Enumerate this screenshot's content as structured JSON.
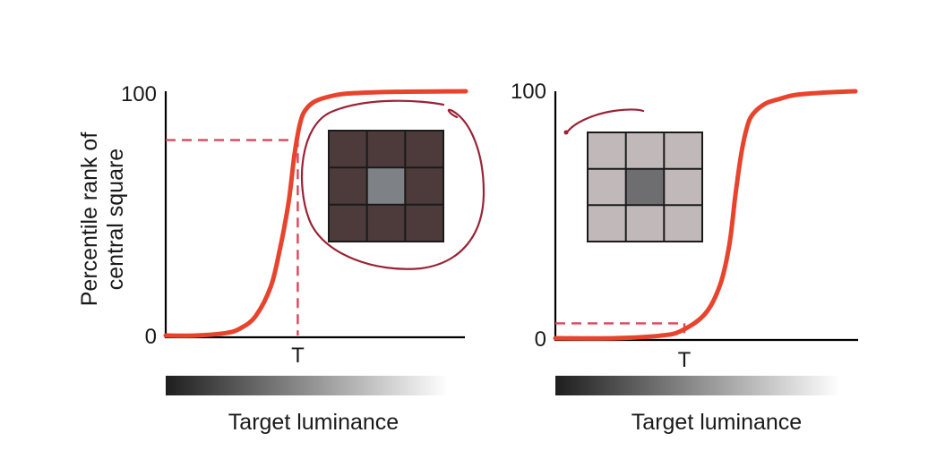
{
  "chart_data": [
    {
      "type": "line",
      "title": "",
      "xlabel": "Target luminance",
      "ylabel": "Percentile rank of central square",
      "ylabel_lines": [
        "Percentile rank of",
        "central square"
      ],
      "y_ticks": [
        "100",
        "0"
      ],
      "x_ticks": [
        "T"
      ],
      "ylim": [
        0,
        100
      ],
      "xlim": [
        0,
        1
      ],
      "series": [
        {
          "x": [
            0,
            0.1,
            0.2,
            0.25,
            0.3,
            0.35,
            0.38,
            0.41,
            0.43,
            0.45,
            0.47,
            0.5,
            0.55,
            0.6,
            0.7,
            0.8,
            0.9,
            1.0
          ],
          "y": [
            0,
            0,
            1,
            3,
            8,
            20,
            35,
            55,
            75,
            88,
            93,
            96,
            98,
            99,
            99.6,
            99.8,
            99.9,
            100
          ]
        }
      ],
      "reference_point": {
        "x": 0.44,
        "y": 80
      },
      "surround": "dark",
      "colors": {
        "curve": "#e8442d",
        "reference": "#e0435a",
        "axes": "#000000",
        "surround_cell": "#4d3b3b",
        "center_cell": "#7e8185"
      }
    },
    {
      "type": "line",
      "title": "",
      "xlabel": "Target luminance",
      "ylabel": "",
      "y_ticks": [
        "100",
        "0"
      ],
      "x_ticks": [
        "T"
      ],
      "ylim": [
        0,
        100
      ],
      "xlim": [
        0,
        1
      ],
      "series": [
        {
          "x": [
            0,
            0.2,
            0.35,
            0.42,
            0.5,
            0.55,
            0.58,
            0.6,
            0.62,
            0.64,
            0.66,
            0.7,
            0.75,
            0.8,
            0.9,
            1.0
          ],
          "y": [
            0,
            0,
            1,
            3,
            10,
            22,
            38,
            58,
            75,
            86,
            91,
            95,
            97,
            98.5,
            99.5,
            100
          ]
        }
      ],
      "reference_point": {
        "x": 0.43,
        "y": 6
      },
      "surround": "light",
      "colors": {
        "curve": "#e8442d",
        "reference": "#e0435a",
        "axes": "#000000",
        "surround_cell": "#c1b9b9",
        "center_cell": "#6e6e70"
      }
    }
  ],
  "annotations": {
    "ink_color": "#9a2335"
  }
}
